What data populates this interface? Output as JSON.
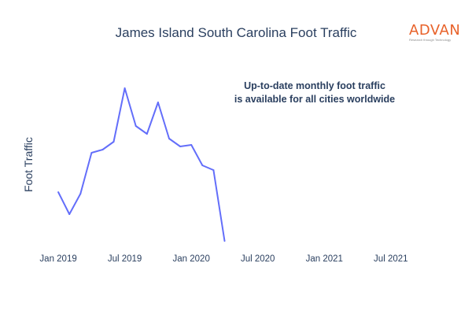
{
  "chart_data": {
    "type": "line",
    "title": "James Island South Carolina Foot Traffic",
    "xlabel": "",
    "ylabel": "Foot Traffic",
    "annotation": [
      "Up-to-date monthly foot traffic",
      "is available for all cities worldwide"
    ],
    "x_tick_labels": [
      "Jan 2019",
      "Jul 2019",
      "Jan 2020",
      "Jul 2020",
      "Jan 2021",
      "Jul 2021"
    ],
    "x_range": [
      "2019-01-01",
      "2021-09-01"
    ],
    "y_range": [
      0,
      100
    ],
    "y_tick_labels_shown": false,
    "grid": false,
    "line_color": "#636efa",
    "series": [
      {
        "x": [
          "2019-01",
          "2019-02",
          "2019-03",
          "2019-04",
          "2019-05",
          "2019-06",
          "2019-07",
          "2019-08",
          "2019-09",
          "2019-10",
          "2019-11",
          "2019-12",
          "2020-01",
          "2020-02",
          "2020-03",
          "2020-04"
        ],
        "values": [
          34,
          20,
          33,
          59,
          61,
          66,
          100,
          76,
          71,
          91,
          68,
          63,
          64,
          51,
          48,
          3
        ]
      }
    ]
  },
  "logo": {
    "word": "ADVAN",
    "tagline": "Research through Technology",
    "color": "#e8622a"
  }
}
